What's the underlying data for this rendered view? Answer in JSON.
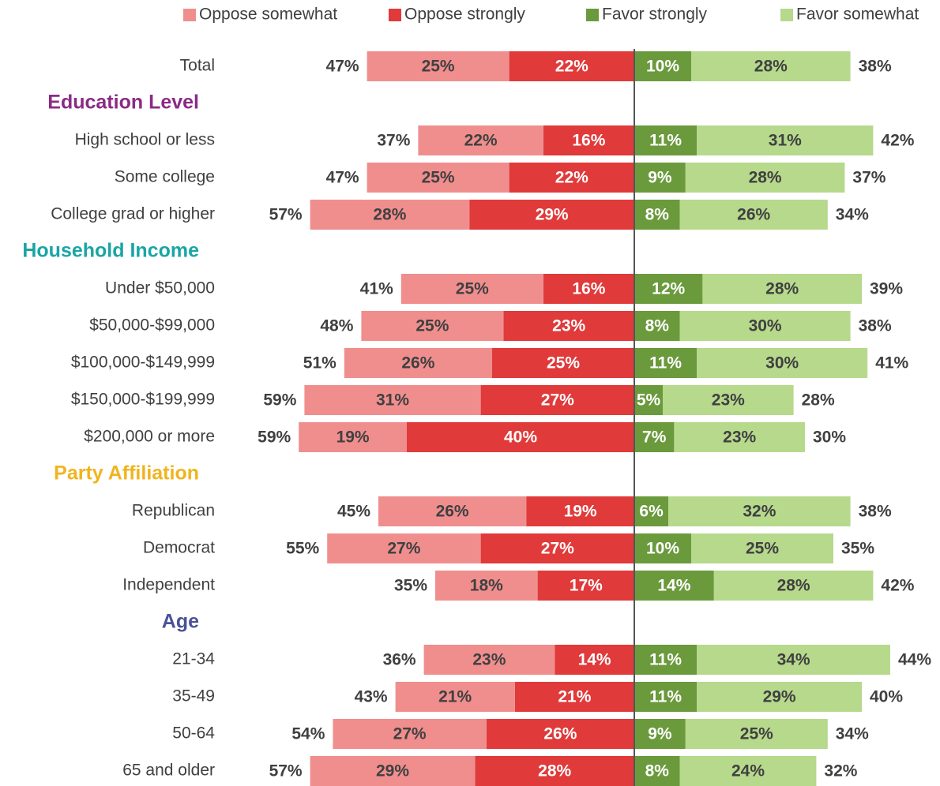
{
  "chart_data": {
    "type": "diverging_bar",
    "categories": [
      "Total",
      "Education Level",
      "High school or less",
      "Some college",
      "College grad or higher",
      "Household Income",
      "Under $50,000",
      "$50,000-$99,000",
      "$100,000-$149,999",
      "$150,000-$199,999",
      "$200,000 or more",
      "Party Affiliation",
      "Republican",
      "Democrat",
      "Independent",
      "Age",
      "21-34",
      "35-49",
      "50-64",
      "65 and older"
    ],
    "category_colors": [
      "#404040",
      "#8b2a84",
      "#404040",
      "#404040",
      "#404040",
      "#1aa5a5",
      "#404040",
      "#404040",
      "#404040",
      "#404040",
      "#404040",
      "#f0b41e",
      "#404040",
      "#404040",
      "#404040",
      "#4a5296",
      "#404040",
      "#404040",
      "#404040",
      "#404040"
    ],
    "series": [
      {
        "name": "Oppose somewhat",
        "color": "#f08e8e",
        "label_color": "#404040",
        "side": "left",
        "values": [
          25,
          null,
          22,
          25,
          28,
          null,
          25,
          25,
          26,
          31,
          19,
          null,
          26,
          27,
          18,
          null,
          23,
          21,
          27,
          29
        ],
        "value_labels": [
          "25%",
          null,
          "22%",
          "25%",
          "28%",
          null,
          "25%",
          "25%",
          "26%",
          "31%",
          "19%",
          null,
          "26%",
          "27%",
          "18%",
          null,
          "23%",
          "21%",
          "27%",
          "29%"
        ]
      },
      {
        "name": "Oppose strongly",
        "color": "#e03a3a",
        "label_color": "#ffffff",
        "side": "left",
        "values": [
          22,
          null,
          16,
          22,
          29,
          null,
          16,
          23,
          25,
          27,
          40,
          null,
          19,
          27,
          17,
          null,
          14,
          21,
          26,
          28
        ],
        "value_labels": [
          "22%",
          null,
          "16%",
          "22%",
          "29%",
          null,
          "16%",
          "23%",
          "25%",
          "27%",
          "40%",
          null,
          "19%",
          "27%",
          "17%",
          null,
          "14%",
          "21%",
          "26%",
          "28%"
        ]
      },
      {
        "name": "Favor strongly",
        "color": "#6a9a3c",
        "label_color": "#ffffff",
        "side": "right",
        "values": [
          10,
          null,
          11,
          9,
          8,
          null,
          12,
          8,
          11,
          5,
          7,
          null,
          6,
          10,
          14,
          null,
          11,
          11,
          9,
          8
        ],
        "value_labels": [
          "10%",
          null,
          "11%",
          "9%",
          "8%",
          null,
          "12%",
          "8%",
          "11%",
          "5%",
          "7%",
          null,
          "6%",
          "10%",
          "14%",
          null,
          "11%",
          "11%",
          "9%",
          "8%"
        ]
      },
      {
        "name": "Favor somewhat",
        "color": "#b6d98c",
        "label_color": "#404040",
        "side": "right",
        "values": [
          28,
          null,
          31,
          28,
          26,
          null,
          28,
          30,
          30,
          23,
          23,
          null,
          32,
          25,
          28,
          null,
          34,
          29,
          25,
          24
        ],
        "value_labels": [
          "28%",
          null,
          "31%",
          "28%",
          "26%",
          null,
          "28%",
          "30%",
          "30%",
          "23%",
          "23%",
          null,
          "32%",
          "25%",
          "28%",
          null,
          "34%",
          "29%",
          "25%",
          "24%"
        ]
      }
    ],
    "oppose_totals": [
      47,
      null,
      37,
      47,
      57,
      null,
      41,
      48,
      51,
      59,
      59,
      null,
      45,
      55,
      35,
      null,
      36,
      43,
      54,
      57
    ],
    "oppose_total_labels": [
      "47%",
      null,
      "37%",
      "47%",
      "57%",
      null,
      "41%",
      "48%",
      "51%",
      "59%",
      "59%",
      null,
      "45%",
      "55%",
      "35%",
      null,
      "36%",
      "43%",
      "54%",
      "57%"
    ],
    "favor_totals": [
      38,
      null,
      42,
      37,
      34,
      null,
      39,
      38,
      41,
      28,
      30,
      null,
      38,
      35,
      42,
      null,
      44,
      40,
      34,
      32
    ],
    "favor_total_labels": [
      "38%",
      null,
      "42%",
      "37%",
      "34%",
      null,
      "39%",
      "38%",
      "41%",
      "28%",
      "30%",
      null,
      "38%",
      "35%",
      "42%",
      null,
      "44%",
      "40%",
      "34%",
      "32%"
    ]
  }
}
